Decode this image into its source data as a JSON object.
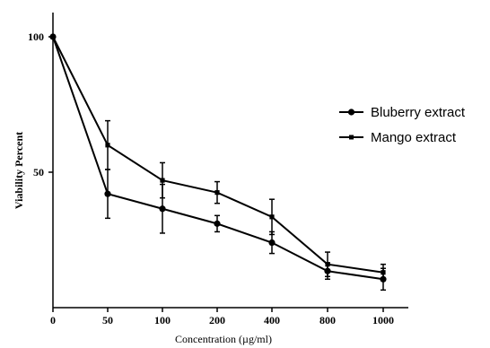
{
  "chart_data": {
    "type": "line",
    "categories": [
      "0",
      "50",
      "100",
      "200",
      "400",
      "800",
      "1000"
    ],
    "xlabel": "Concentration (µg/ml)",
    "ylabel": "Viability Percent",
    "ylim": [
      0,
      110
    ],
    "yticks": [
      50,
      100
    ],
    "grid": false,
    "legend_position": "right",
    "series": [
      {
        "name": "Bluberry extract",
        "marker": "circle",
        "values": [
          100,
          42,
          36.5,
          31,
          24,
          13.5,
          10.5
        ],
        "errors": [
          0,
          9,
          9,
          3,
          4,
          3,
          4
        ]
      },
      {
        "name": "Mango extract",
        "marker": "square",
        "values": [
          100,
          60,
          47,
          42.5,
          33.5,
          16,
          13
        ],
        "errors": [
          0,
          9,
          6.5,
          4,
          6.5,
          4.5,
          3
        ]
      }
    ],
    "colors": {
      "line": "#000000",
      "background": "#ffffff"
    }
  }
}
